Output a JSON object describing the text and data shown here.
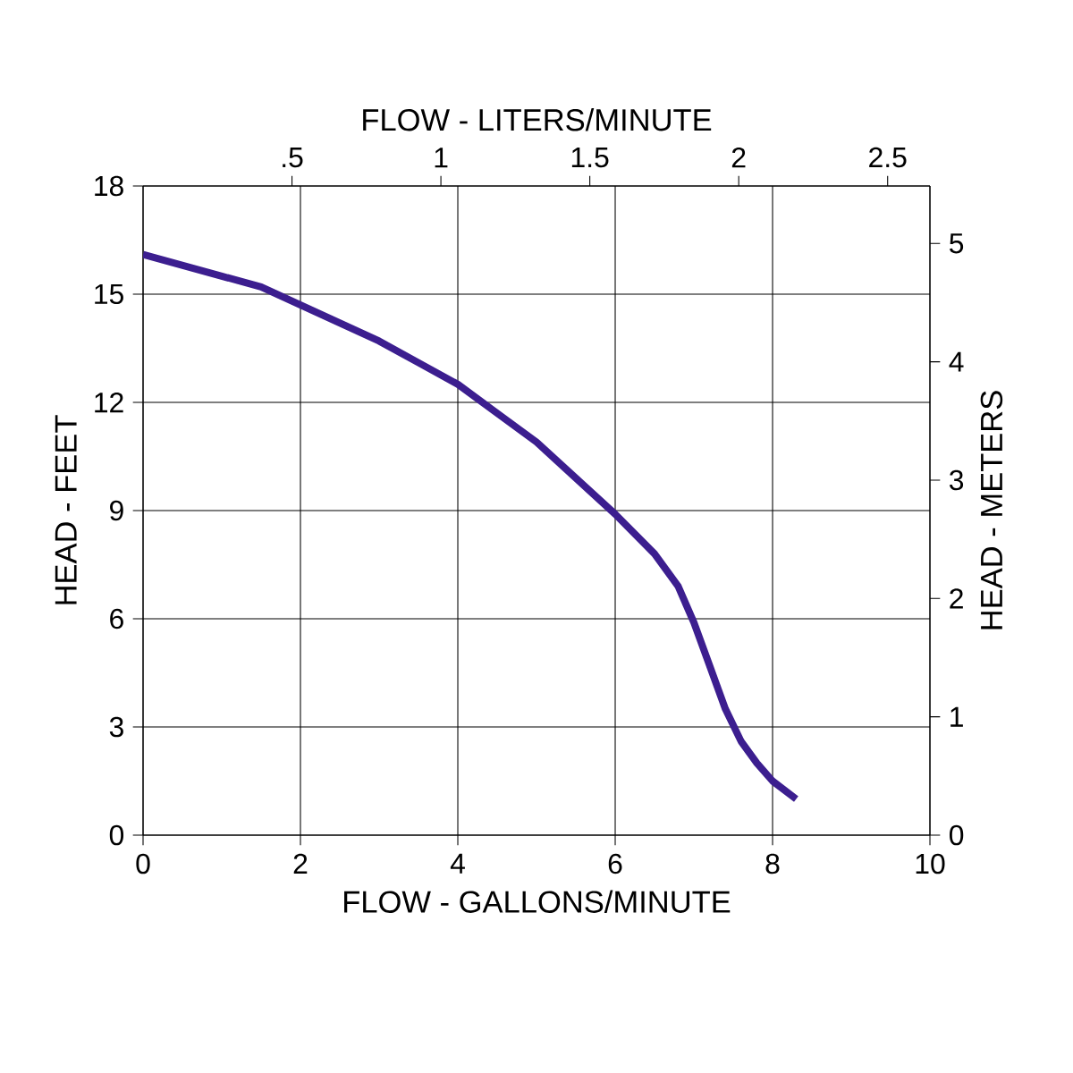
{
  "chart_data": {
    "type": "line",
    "xlabel": "FLOW - GALLONS/MINUTE",
    "ylabel": "HEAD - FEET",
    "x2label": "FLOW - LITERS/MINUTE",
    "y2label": "HEAD - METERS",
    "xlim": [
      0,
      10
    ],
    "xticks": [
      0,
      2,
      4,
      6,
      8,
      10
    ],
    "ylim": [
      0,
      18
    ],
    "yticks": [
      0,
      3,
      6,
      9,
      12,
      15,
      18
    ],
    "x2lim": [
      0,
      2.642
    ],
    "x2ticks": [
      {
        "value": 0.5,
        "label": ".5"
      },
      1,
      1.5,
      2,
      2.5
    ],
    "y2lim": [
      0,
      5.486
    ],
    "y2ticks": [
      0,
      1,
      2,
      3,
      4,
      5
    ],
    "grid": true,
    "marker": "none",
    "line_style": "solid",
    "series": [
      {
        "color": "#3c1e8f",
        "x": [
          0,
          0.5,
          1,
          1.5,
          2,
          2.5,
          3,
          3.5,
          4,
          4.5,
          5,
          5.5,
          6,
          6.5,
          6.8,
          7,
          7.2,
          7.4,
          7.6,
          7.8,
          8,
          8.3
        ],
        "values": [
          16.1,
          15.8,
          15.5,
          15.2,
          14.7,
          14.2,
          13.7,
          13.1,
          12.5,
          11.7,
          10.9,
          9.9,
          8.9,
          7.8,
          6.9,
          5.9,
          4.7,
          3.5,
          2.6,
          2.0,
          1.5,
          1.0
        ]
      }
    ]
  }
}
